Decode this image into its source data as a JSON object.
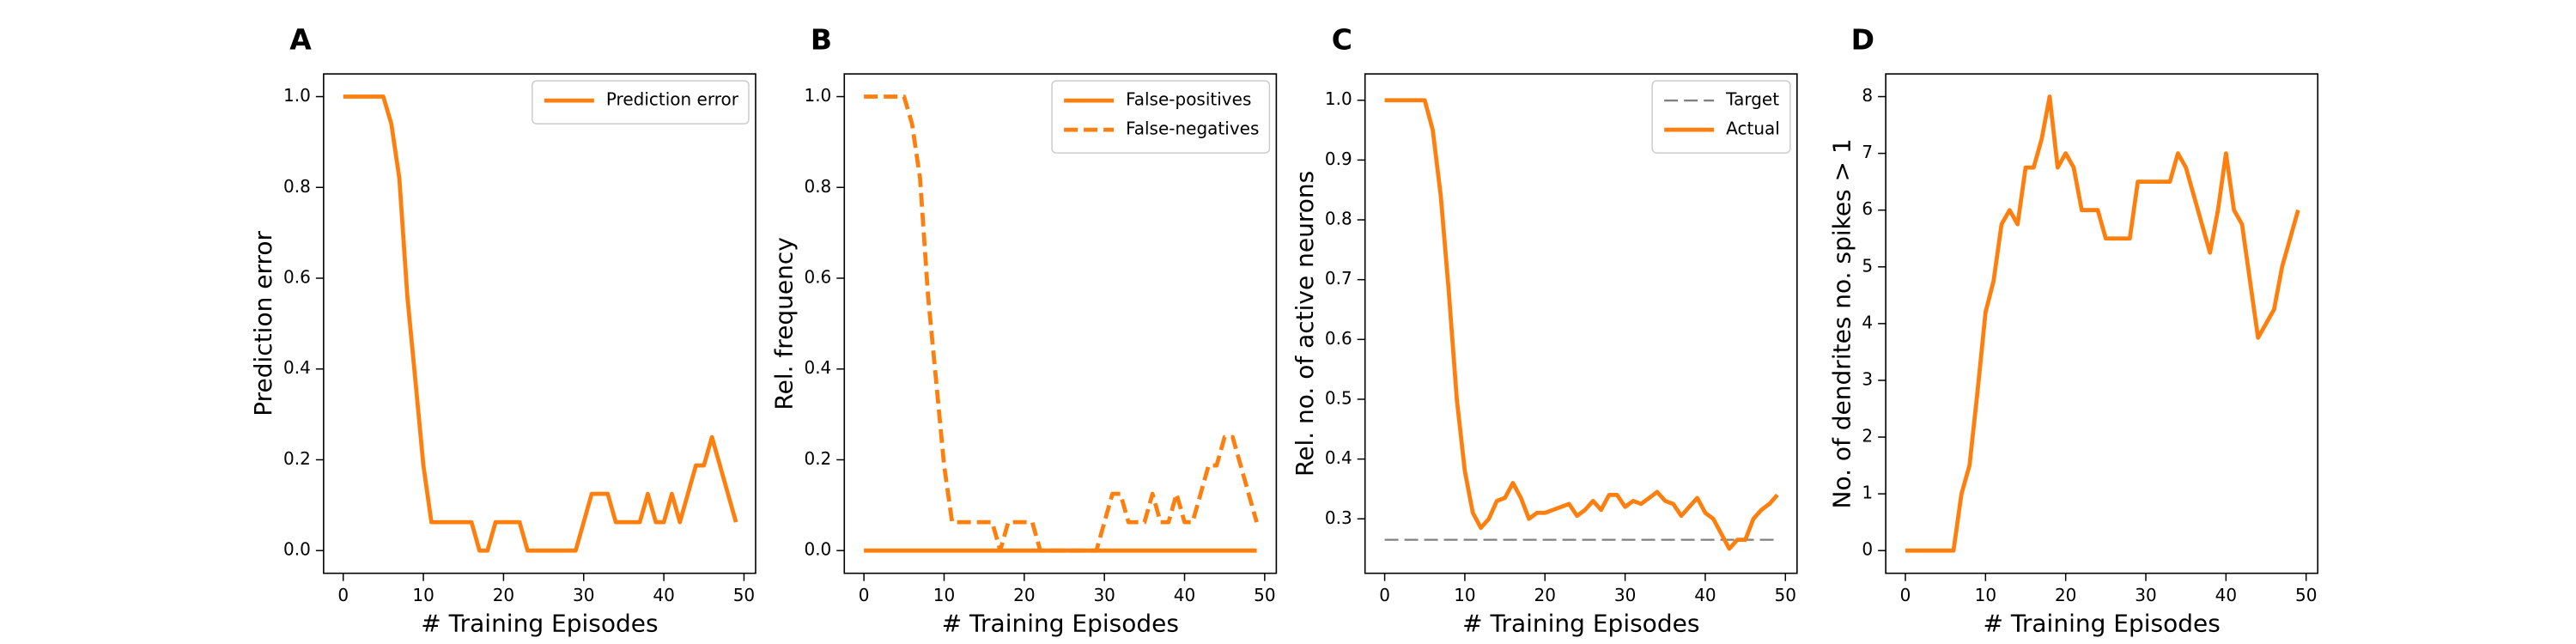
{
  "chart_data": [
    {
      "type": "line",
      "title": "A",
      "x_label": "# Training Episodes",
      "y_label": "Prediction error",
      "x": [
        0,
        1,
        2,
        3,
        4,
        5,
        6,
        7,
        8,
        9,
        10,
        11,
        12,
        13,
        14,
        15,
        16,
        17,
        18,
        19,
        20,
        21,
        22,
        23,
        24,
        25,
        26,
        27,
        28,
        29,
        30,
        31,
        32,
        33,
        34,
        35,
        36,
        37,
        38,
        39,
        40,
        41,
        42,
        43,
        44,
        45,
        46,
        47,
        48,
        49
      ],
      "series": [
        {
          "name": "Prediction error",
          "color": "#ff7f0e",
          "style": "solid",
          "values": [
            1,
            1,
            1,
            1,
            1,
            1,
            0.94,
            0.82,
            0.56,
            0.375,
            0.1875,
            0.0625,
            0.0625,
            0.0625,
            0.0625,
            0.0625,
            0.0625,
            0,
            0,
            0.0625,
            0.0625,
            0.0625,
            0.0625,
            0,
            0,
            0,
            0,
            0,
            0,
            0,
            0.0625,
            0.125,
            0.125,
            0.125,
            0.0625,
            0.0625,
            0.0625,
            0.0625,
            0.125,
            0.0625,
            0.0625,
            0.125,
            0.0625,
            0.125,
            0.1875,
            0.1875,
            0.25,
            0.1875,
            0.125,
            0.0625
          ]
        }
      ],
      "xlim": [
        -2.45,
        51.45
      ],
      "xticks": [
        0,
        10,
        20,
        30,
        40,
        50
      ],
      "ylim": [
        -0.05,
        1.05
      ],
      "yticks": [
        {
          "value": 0,
          "label": "0.0"
        },
        0.2,
        0.4,
        0.6,
        0.8,
        {
          "value": 1,
          "label": "1.0"
        }
      ],
      "legend": "upper right"
    },
    {
      "type": "line",
      "title": "B",
      "x_label": "# Training Episodes",
      "y_label": "Rel. frequency",
      "x": [
        0,
        1,
        2,
        3,
        4,
        5,
        6,
        7,
        8,
        9,
        10,
        11,
        12,
        13,
        14,
        15,
        16,
        17,
        18,
        19,
        20,
        21,
        22,
        23,
        24,
        25,
        26,
        27,
        28,
        29,
        30,
        31,
        32,
        33,
        34,
        35,
        36,
        37,
        38,
        39,
        40,
        41,
        42,
        43,
        44,
        45,
        46,
        47,
        48,
        49
      ],
      "series": [
        {
          "name": "False-positives",
          "color": "#ff7f0e",
          "style": "solid",
          "values": [
            0,
            0,
            0,
            0,
            0,
            0,
            0,
            0,
            0,
            0,
            0,
            0,
            0,
            0,
            0,
            0,
            0,
            0,
            0,
            0,
            0,
            0,
            0,
            0,
            0,
            0,
            0,
            0,
            0,
            0,
            0,
            0,
            0,
            0,
            0,
            0,
            0,
            0,
            0,
            0,
            0,
            0,
            0,
            0,
            0,
            0,
            0,
            0,
            0,
            0
          ]
        },
        {
          "name": "False-negatives",
          "color": "#ff7f0e",
          "style": "dashed",
          "values": [
            1,
            1,
            1,
            1,
            1,
            1,
            0.94,
            0.82,
            0.56,
            0.375,
            0.1875,
            0.0625,
            0.0625,
            0.0625,
            0.0625,
            0.0625,
            0.0625,
            0,
            0.0625,
            0.0625,
            0.0625,
            0.0625,
            0,
            0,
            0,
            0,
            0,
            0,
            0,
            0,
            0.0625,
            0.125,
            0.125,
            0.0625,
            0.0625,
            0.0625,
            0.125,
            0.0625,
            0.0625,
            0.125,
            0.0625,
            0.0625,
            0.125,
            0.1875,
            0.1875,
            0.25,
            0.25,
            0.1875,
            0.125,
            0.0625
          ]
        }
      ],
      "xlim": [
        -2.45,
        51.45
      ],
      "xticks": [
        0,
        10,
        20,
        30,
        40,
        50
      ],
      "ylim": [
        -0.05,
        1.05
      ],
      "yticks": [
        {
          "value": 0,
          "label": "0.0"
        },
        0.2,
        0.4,
        0.6,
        0.8,
        {
          "value": 1,
          "label": "1.0"
        }
      ],
      "legend": "upper right"
    },
    {
      "type": "line",
      "title": "C",
      "x_label": "# Training Episodes",
      "y_label": "Rel. no. of active neurons",
      "x": [
        0,
        1,
        2,
        3,
        4,
        5,
        6,
        7,
        8,
        9,
        10,
        11,
        12,
        13,
        14,
        15,
        16,
        17,
        18,
        19,
        20,
        21,
        22,
        23,
        24,
        25,
        26,
        27,
        28,
        29,
        30,
        31,
        32,
        33,
        34,
        35,
        36,
        37,
        38,
        39,
        40,
        41,
        42,
        43,
        44,
        45,
        46,
        47,
        48,
        49
      ],
      "series": [
        {
          "name": "Target",
          "color": "#808080",
          "style": "dashed",
          "width": 1.2,
          "values": [
            0.265,
            0.265,
            0.265,
            0.265,
            0.265,
            0.265,
            0.265,
            0.265,
            0.265,
            0.265,
            0.265,
            0.265,
            0.265,
            0.265,
            0.265,
            0.265,
            0.265,
            0.265,
            0.265,
            0.265,
            0.265,
            0.265,
            0.265,
            0.265,
            0.265,
            0.265,
            0.265,
            0.265,
            0.265,
            0.265,
            0.265,
            0.265,
            0.265,
            0.265,
            0.265,
            0.265,
            0.265,
            0.265,
            0.265,
            0.265,
            0.265,
            0.265,
            0.265,
            0.265,
            0.265,
            0.265,
            0.265,
            0.265,
            0.265,
            0.265
          ]
        },
        {
          "name": "Actual",
          "color": "#ff7f0e",
          "style": "solid",
          "values": [
            1,
            1,
            1,
            1,
            1,
            1,
            0.95,
            0.84,
            0.68,
            0.5,
            0.38,
            0.31,
            0.285,
            0.3,
            0.33,
            0.335,
            0.36,
            0.335,
            0.3,
            0.31,
            0.31,
            0.315,
            0.32,
            0.325,
            0.305,
            0.315,
            0.33,
            0.315,
            0.34,
            0.34,
            0.32,
            0.33,
            0.325,
            0.335,
            0.345,
            0.33,
            0.325,
            0.305,
            0.32,
            0.335,
            0.31,
            0.3,
            0.275,
            0.25,
            0.265,
            0.265,
            0.3,
            0.315,
            0.325,
            0.34
          ]
        }
      ],
      "xlim": [
        -2.45,
        51.45
      ],
      "xticks": [
        0,
        10,
        20,
        30,
        40,
        50
      ],
      "ylim": [
        0.209,
        1.044
      ],
      "yticks": [
        0.3,
        0.4,
        0.5,
        0.6,
        0.7,
        0.8,
        0.9,
        {
          "value": 1,
          "label": "1.0"
        }
      ],
      "legend": "upper right"
    },
    {
      "type": "line",
      "title": "D",
      "x_label": "# Training Episodes",
      "y_label": "No. of dendrites no. spikes > 1",
      "x": [
        0,
        1,
        2,
        3,
        4,
        5,
        6,
        7,
        8,
        9,
        10,
        11,
        12,
        13,
        14,
        15,
        16,
        17,
        18,
        19,
        20,
        21,
        22,
        23,
        24,
        25,
        26,
        27,
        28,
        29,
        30,
        31,
        32,
        33,
        34,
        35,
        36,
        37,
        38,
        39,
        40,
        41,
        42,
        43,
        44,
        45,
        46,
        47,
        48,
        49
      ],
      "series": [
        {
          "color": "#ff7f0e",
          "style": "solid",
          "values": [
            0,
            0,
            0,
            0,
            0,
            0,
            0,
            1,
            1.5,
            2.8,
            4.2,
            4.75,
            5.75,
            6,
            5.75,
            6.75,
            6.75,
            7.25,
            8,
            6.75,
            7,
            6.75,
            6,
            6,
            6,
            5.5,
            5.5,
            5.5,
            5.5,
            6.5,
            6.5,
            6.5,
            6.5,
            6.5,
            7,
            6.75,
            6.25,
            5.75,
            5.25,
            6,
            7,
            6,
            5.75,
            4.75,
            3.75,
            4,
            4.25,
            5,
            5.5,
            6
          ]
        }
      ],
      "xlim": [
        -2.45,
        51.45
      ],
      "xticks": [
        0,
        10,
        20,
        30,
        40,
        50
      ],
      "ylim": [
        -0.4,
        8.4
      ],
      "yticks": [
        0,
        1,
        2,
        3,
        4,
        5,
        6,
        7,
        8
      ]
    }
  ]
}
